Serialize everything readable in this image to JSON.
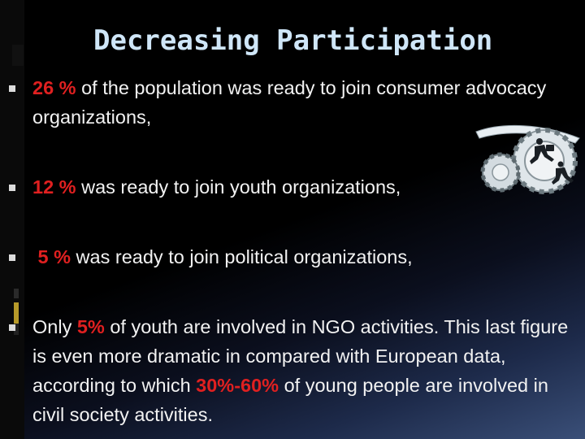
{
  "slide": {
    "title": "Decreasing Participation",
    "bullets": [
      {
        "pre": "",
        "highlight": "26 %",
        "post": " of the population was ready to join consumer advocacy organizations,"
      },
      {
        "pre": "",
        "highlight": "12 %",
        "post": " was ready to join youth organizations,"
      },
      {
        "pre": " ",
        "highlight": "5 %",
        "post": " was ready to join political organizations,"
      },
      {
        "pre": "Only ",
        "highlight": "5%",
        "post": " of youth are involved in NGO activities. This last figure is even more dramatic in compared with European data, according to which ",
        "highlight2": "30%-60%",
        "post2": " of young people are involved in civil society activities."
      }
    ],
    "clipart_icon": "gears-running-men-icon",
    "colors": {
      "highlight": "#e02020",
      "title": "#cfe6f8",
      "text": "#f2f2f2"
    }
  }
}
